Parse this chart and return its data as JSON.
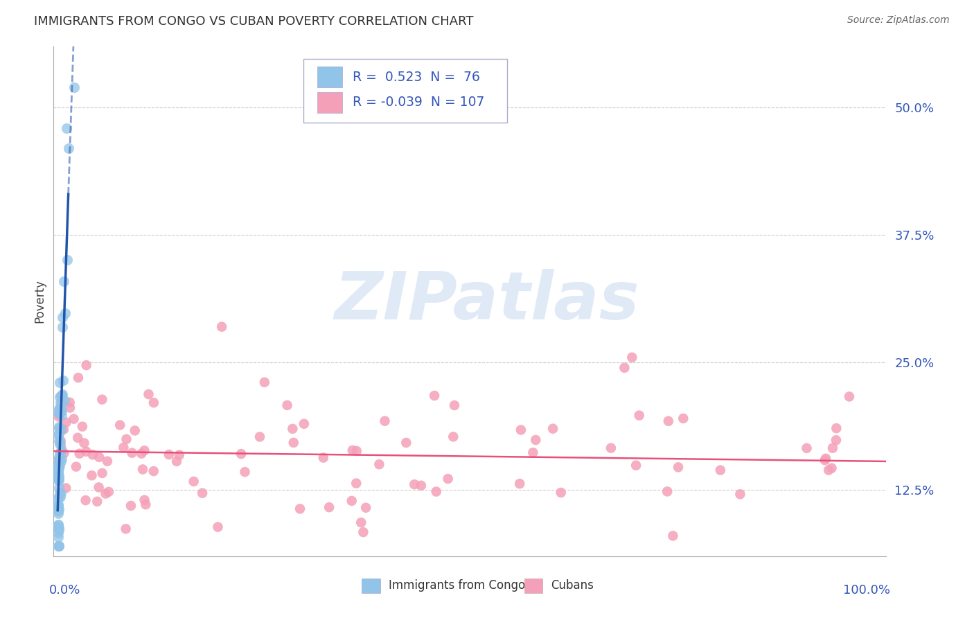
{
  "title": "IMMIGRANTS FROM CONGO VS CUBAN POVERTY CORRELATION CHART",
  "source": "Source: ZipAtlas.com",
  "ylabel": "Poverty",
  "ytick_values": [
    0.125,
    0.25,
    0.375,
    0.5
  ],
  "ylim": [
    0.06,
    0.56
  ],
  "xlim": [
    -0.005,
    1.01
  ],
  "congo_R": 0.523,
  "congo_N": 76,
  "cuban_R": -0.039,
  "cuban_N": 107,
  "congo_color": "#90c4e8",
  "cuban_color": "#f4a0b8",
  "congo_line_color": "#2255aa",
  "cuban_line_color": "#e8507a",
  "watermark_text": "ZIPatlas",
  "background": "#ffffff",
  "grid_color": "#cccccc",
  "axis_color": "#aaaaaa",
  "text_color_blue": "#3355bb",
  "title_color": "#333333",
  "source_color": "#666666"
}
